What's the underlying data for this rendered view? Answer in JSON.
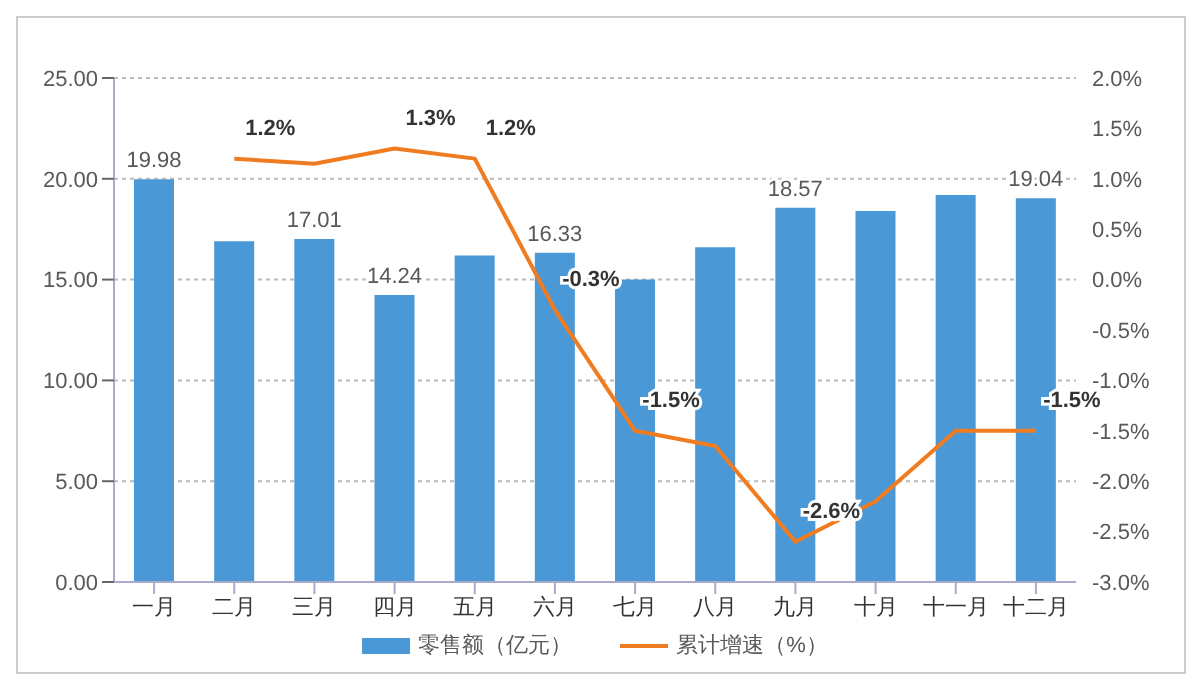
{
  "chart_data": {
    "type": "bar",
    "categories": [
      "一月",
      "二月",
      "三月",
      "四月",
      "五月",
      "六月",
      "七月",
      "八月",
      "九月",
      "十月",
      "十一月",
      "十二月"
    ],
    "series": [
      {
        "name": "零售额（亿元）",
        "color": "#4a98d6",
        "values": [
          19.98,
          16.9,
          17.01,
          14.24,
          16.2,
          16.33,
          15.0,
          16.6,
          18.57,
          18.4,
          19.2,
          19.04
        ],
        "value_labels": [
          "19.98",
          null,
          "17.01",
          "14.24",
          null,
          "16.33",
          null,
          null,
          "18.57",
          null,
          null,
          "19.04"
        ]
      },
      {
        "name": "累计增速（%）",
        "type": "line",
        "axis": "y2",
        "color": "#f07c22",
        "values": [
          null,
          1.2,
          1.15,
          1.3,
          1.2,
          -0.3,
          -1.5,
          -1.65,
          -2.6,
          -2.2,
          -1.5,
          -1.5
        ],
        "value_labels": [
          null,
          "1.2%",
          null,
          "1.3%",
          "1.2%",
          "-0.3%",
          "-1.5%",
          null,
          "-2.6%",
          null,
          null,
          "-1.5%"
        ]
      }
    ],
    "ylim": [
      0,
      25
    ],
    "yticks": [
      {
        "value": 0,
        "label": "0.00"
      },
      {
        "value": 5,
        "label": "5.00"
      },
      {
        "value": 10,
        "label": "10.00"
      },
      {
        "value": 15,
        "label": "15.00"
      },
      {
        "value": 20,
        "label": "20.00"
      },
      {
        "value": 25,
        "label": "25.00"
      }
    ],
    "y2lim": [
      -3,
      2
    ],
    "y2ticks": [
      {
        "value": -3,
        "label": "-3.0%"
      },
      {
        "value": -2.5,
        "label": "-2.5%"
      },
      {
        "value": -2,
        "label": "-2.0%"
      },
      {
        "value": -1.5,
        "label": "-1.5%"
      },
      {
        "value": -1,
        "label": "-1.0%"
      },
      {
        "value": -0.5,
        "label": "-0.5%"
      },
      {
        "value": 0,
        "label": "0.0%"
      },
      {
        "value": 0.5,
        "label": "0.5%"
      },
      {
        "value": 1,
        "label": "1.0%"
      },
      {
        "value": 1.5,
        "label": "1.5%"
      },
      {
        "value": 2,
        "label": "2.0%"
      }
    ],
    "grid": "y",
    "legend": "bottom",
    "marker": "none"
  }
}
